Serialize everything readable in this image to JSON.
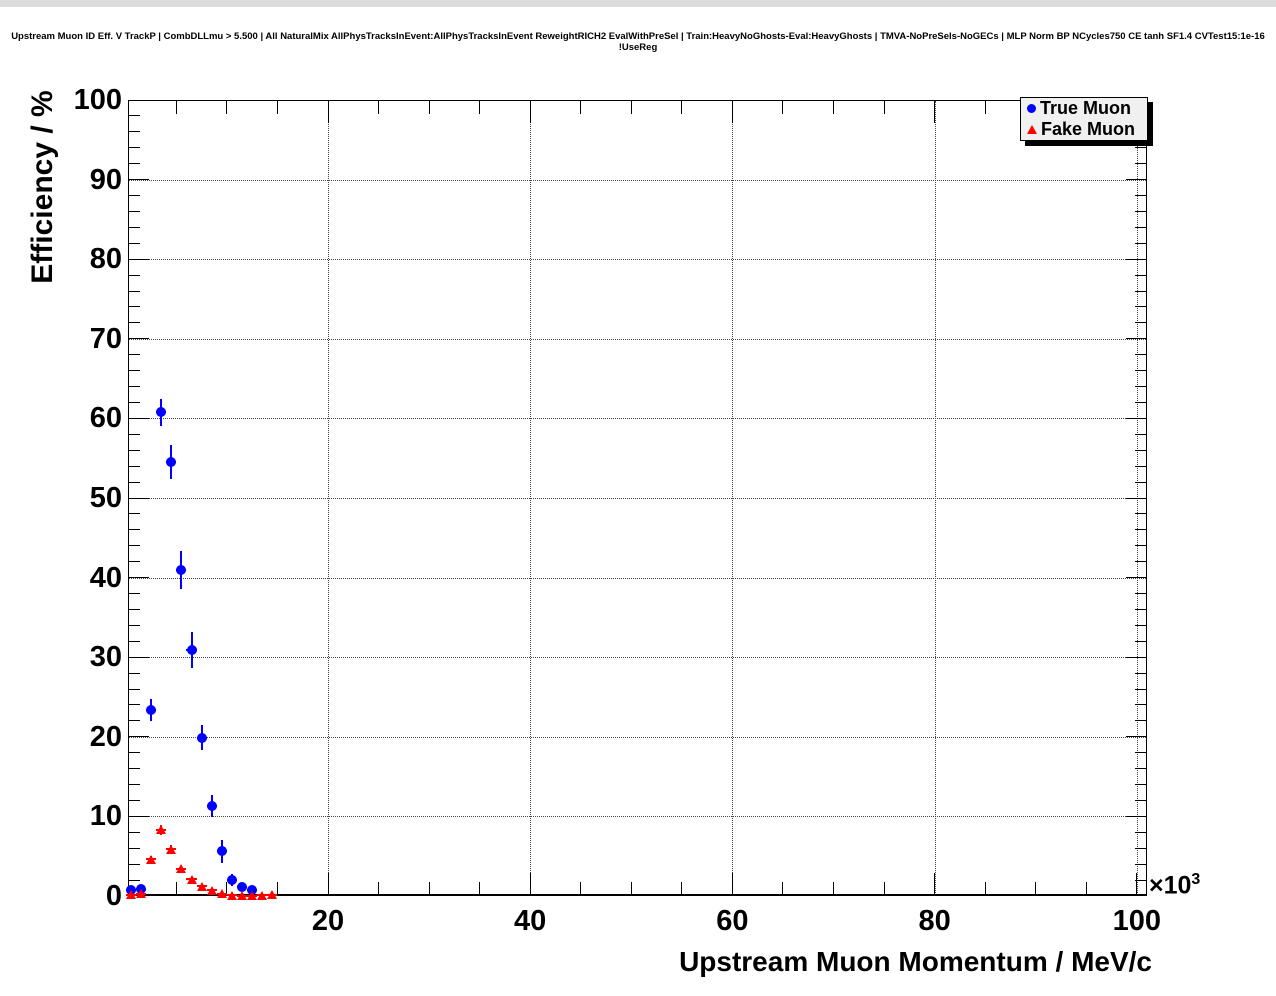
{
  "window": {
    "top_strip_color": "#dcdcdc"
  },
  "legend": {
    "entries": [
      {
        "label": "True Muon",
        "marker": "circle",
        "color": "#0000ff"
      },
      {
        "label": "Fake Muon",
        "marker": "triangle",
        "color": "#ff0000"
      }
    ]
  },
  "chart_data": {
    "type": "scatter",
    "title": "Upstream Muon ID Eff. V TrackP | CombDLLmu > 5.500 | All NaturalMix AllPhysTracksInEvent:AllPhysTracksInEvent ReweightRICH2 EvalWithPreSel | Train:HeavyNoGhosts-Eval:HeavyGhosts | TMVA-NoPreSels-NoGECs | MLP Norm BP NCycles750 CE tanh SF1.4 CVTest15:1e-16 !UseReg",
    "xlabel": "Upstream Muon Momentum / MeV/c",
    "ylabel": "Efficiency / %",
    "x_axis_multiplier": "×10",
    "x_axis_multiplier_exponent": "3",
    "xlim_10e3": [
      0,
      101
    ],
    "ylim": [
      0,
      100
    ],
    "x_major_ticks_10e3": [
      20,
      40,
      60,
      80,
      100
    ],
    "x_minor_tick_step_10e3": 5,
    "y_major_ticks": [
      0,
      10,
      20,
      30,
      40,
      50,
      60,
      70,
      80,
      90,
      100
    ],
    "y_minor_tick_step": 2,
    "grid": "dotted",
    "legend_position": "top-right",
    "series": [
      {
        "name": "True Muon",
        "color": "#0000ff",
        "marker": "circle",
        "x_10e3": [
          0.5,
          1.5,
          2.5,
          3.5,
          4.5,
          5.5,
          6.5,
          7.5,
          8.5,
          9.5,
          10.5,
          11.5,
          12.5
        ],
        "y_percent": [
          0.8,
          0.9,
          23.4,
          60.8,
          54.5,
          41.0,
          30.9,
          19.9,
          11.3,
          5.6,
          2.0,
          1.1,
          0.8
        ],
        "yerr_percent": [
          0.3,
          0.3,
          1.4,
          1.7,
          2.1,
          2.4,
          2.3,
          1.6,
          1.4,
          1.4,
          0.8,
          0.5,
          0.4
        ],
        "xerr_10e3": 0.5
      },
      {
        "name": "Fake Muon",
        "color": "#ff0000",
        "marker": "triangle",
        "x_10e3": [
          0.5,
          1.5,
          2.5,
          3.5,
          4.5,
          5.5,
          6.5,
          7.5,
          8.5,
          9.5,
          10.5,
          11.5,
          12.5,
          13.5,
          14.5
        ],
        "y_percent": [
          0.15,
          0.3,
          4.6,
          8.3,
          5.9,
          3.4,
          2.1,
          1.2,
          0.75,
          0.3,
          0.1,
          0.05,
          0.05,
          0.1,
          0.15
        ],
        "yerr_percent": [
          0.1,
          0.15,
          0.45,
          0.65,
          0.55,
          0.4,
          0.3,
          0.25,
          0.2,
          0.12,
          0.08,
          0.05,
          0.05,
          0.08,
          0.1
        ],
        "xerr_10e3": 0.5
      }
    ]
  }
}
